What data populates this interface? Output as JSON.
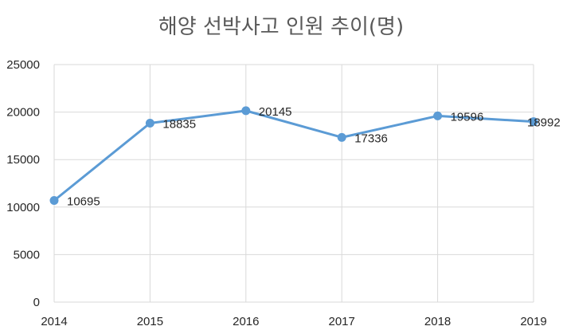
{
  "chart_data": {
    "type": "line",
    "title": "해양 선박사고 인원 추이(명)",
    "categories": [
      "2014",
      "2015",
      "2016",
      "2017",
      "2018",
      "2019"
    ],
    "series": [
      {
        "values": [
          10695,
          18835,
          20145,
          17336,
          19596,
          18992
        ],
        "data_labels": [
          "10695",
          "18835",
          "20145",
          "17336",
          "19596",
          "18992"
        ]
      }
    ],
    "y_ticks": [
      "0",
      "5000",
      "10000",
      "15000",
      "20000",
      "25000"
    ],
    "ylim": [
      0,
      25000
    ],
    "grid": true,
    "legend": "none",
    "xlabel": "",
    "ylabel": ""
  },
  "colors": {
    "series": "#5b9bd5",
    "grid": "#d9d9d9",
    "title": "#595959",
    "text": "#262626"
  }
}
